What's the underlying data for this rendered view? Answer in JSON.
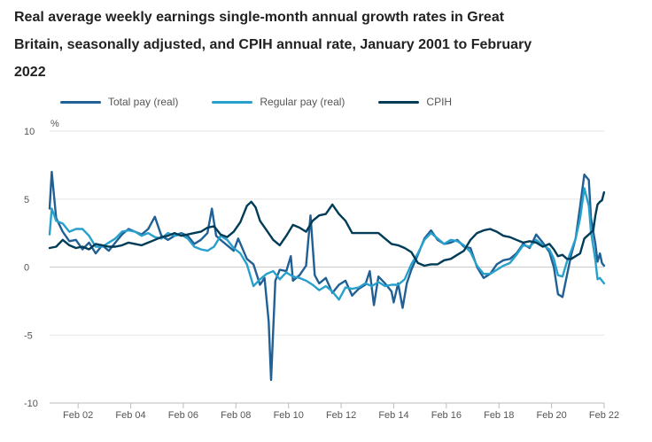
{
  "chart_data": {
    "type": "line",
    "title": "Real average weekly earnings single-month annual growth rates in Great Britain, seasonally adjusted, and CPIH annual rate, January 2001 to February 2022",
    "ylabel": "%",
    "ylim": [
      -10,
      10
    ],
    "yticks": [
      10,
      5,
      0,
      -5,
      -10
    ],
    "xlim": [
      2001.0,
      2022.083
    ],
    "xticks": [
      {
        "label": "Feb 02",
        "x": 2002.083
      },
      {
        "label": "Feb 04",
        "x": 2004.083
      },
      {
        "label": "Feb 06",
        "x": 2006.083
      },
      {
        "label": "Feb 08",
        "x": 2008.083
      },
      {
        "label": "Feb 10",
        "x": 2010.083
      },
      {
        "label": "Feb 12",
        "x": 2012.083
      },
      {
        "label": "Feb 14",
        "x": 2014.083
      },
      {
        "label": "Feb 16",
        "x": 2016.083
      },
      {
        "label": "Feb 18",
        "x": 2018.083
      },
      {
        "label": "Feb 20",
        "x": 2020.083
      },
      {
        "label": "Feb 22",
        "x": 2022.083
      }
    ],
    "grid": true,
    "legend_position": "top-left",
    "series": [
      {
        "name": "Total pay (real)",
        "color": "#206095",
        "points": [
          [
            2001.0,
            4.3
          ],
          [
            2001.08,
            7.0
          ],
          [
            2001.25,
            3.6
          ],
          [
            2001.5,
            2.6
          ],
          [
            2001.75,
            1.9
          ],
          [
            2002.0,
            2.0
          ],
          [
            2002.25,
            1.3
          ],
          [
            2002.5,
            1.8
          ],
          [
            2002.75,
            1.0
          ],
          [
            2003.0,
            1.6
          ],
          [
            2003.25,
            1.2
          ],
          [
            2003.5,
            1.8
          ],
          [
            2003.75,
            2.4
          ],
          [
            2004.0,
            2.8
          ],
          [
            2004.25,
            2.6
          ],
          [
            2004.5,
            2.4
          ],
          [
            2004.75,
            2.8
          ],
          [
            2005.0,
            3.7
          ],
          [
            2005.25,
            2.3
          ],
          [
            2005.5,
            2.0
          ],
          [
            2005.75,
            2.3
          ],
          [
            2006.0,
            2.5
          ],
          [
            2006.25,
            2.3
          ],
          [
            2006.5,
            1.7
          ],
          [
            2006.75,
            2.0
          ],
          [
            2007.0,
            2.5
          ],
          [
            2007.17,
            4.3
          ],
          [
            2007.33,
            2.3
          ],
          [
            2007.5,
            2.0
          ],
          [
            2007.75,
            1.6
          ],
          [
            2008.0,
            1.2
          ],
          [
            2008.17,
            2.1
          ],
          [
            2008.5,
            0.6
          ],
          [
            2008.75,
            0.2
          ],
          [
            2009.0,
            -1.3
          ],
          [
            2009.17,
            -0.8
          ],
          [
            2009.33,
            -4.0
          ],
          [
            2009.42,
            -8.3
          ],
          [
            2009.58,
            -1.0
          ],
          [
            2009.75,
            -0.2
          ],
          [
            2010.0,
            -0.3
          ],
          [
            2010.17,
            0.8
          ],
          [
            2010.25,
            -1.0
          ],
          [
            2010.5,
            -0.6
          ],
          [
            2010.75,
            0.1
          ],
          [
            2010.92,
            3.8
          ],
          [
            2011.08,
            -0.6
          ],
          [
            2011.25,
            -1.2
          ],
          [
            2011.5,
            -0.8
          ],
          [
            2011.75,
            -1.9
          ],
          [
            2012.0,
            -1.3
          ],
          [
            2012.25,
            -1.0
          ],
          [
            2012.5,
            -2.1
          ],
          [
            2012.75,
            -1.6
          ],
          [
            2013.0,
            -1.3
          ],
          [
            2013.17,
            -0.3
          ],
          [
            2013.33,
            -2.8
          ],
          [
            2013.5,
            -0.7
          ],
          [
            2013.75,
            -1.2
          ],
          [
            2014.0,
            -1.8
          ],
          [
            2014.08,
            -2.6
          ],
          [
            2014.25,
            -1.2
          ],
          [
            2014.42,
            -3.0
          ],
          [
            2014.58,
            -1.2
          ],
          [
            2014.75,
            -0.2
          ],
          [
            2015.0,
            0.9
          ],
          [
            2015.25,
            2.1
          ],
          [
            2015.5,
            2.7
          ],
          [
            2015.75,
            2.0
          ],
          [
            2016.0,
            1.7
          ],
          [
            2016.25,
            1.8
          ],
          [
            2016.5,
            2.0
          ],
          [
            2016.75,
            1.5
          ],
          [
            2017.0,
            1.4
          ],
          [
            2017.25,
            0.0
          ],
          [
            2017.5,
            -0.8
          ],
          [
            2017.75,
            -0.5
          ],
          [
            2018.0,
            0.2
          ],
          [
            2018.25,
            0.5
          ],
          [
            2018.5,
            0.6
          ],
          [
            2018.75,
            1.0
          ],
          [
            2019.0,
            1.7
          ],
          [
            2019.25,
            1.4
          ],
          [
            2019.5,
            2.4
          ],
          [
            2019.75,
            1.8
          ],
          [
            2020.0,
            1.1
          ],
          [
            2020.17,
            0.0
          ],
          [
            2020.33,
            -2.0
          ],
          [
            2020.5,
            -2.2
          ],
          [
            2020.67,
            -0.6
          ],
          [
            2020.83,
            0.9
          ],
          [
            2021.0,
            2.1
          ],
          [
            2021.17,
            4.5
          ],
          [
            2021.33,
            6.8
          ],
          [
            2021.5,
            6.4
          ],
          [
            2021.58,
            3.6
          ],
          [
            2021.75,
            1.7
          ],
          [
            2021.83,
            0.4
          ],
          [
            2021.92,
            1.0
          ],
          [
            2022.0,
            0.3
          ],
          [
            2022.08,
            0.1
          ]
        ]
      },
      {
        "name": "Regular pay (real)",
        "color": "#27a0cc",
        "points": [
          [
            2001.0,
            2.4
          ],
          [
            2001.08,
            4.3
          ],
          [
            2001.25,
            3.4
          ],
          [
            2001.5,
            3.2
          ],
          [
            2001.75,
            2.6
          ],
          [
            2002.0,
            2.8
          ],
          [
            2002.25,
            2.8
          ],
          [
            2002.5,
            2.3
          ],
          [
            2002.75,
            1.5
          ],
          [
            2003.0,
            1.5
          ],
          [
            2003.25,
            1.8
          ],
          [
            2003.5,
            2.1
          ],
          [
            2003.75,
            2.6
          ],
          [
            2004.0,
            2.7
          ],
          [
            2004.25,
            2.6
          ],
          [
            2004.5,
            2.3
          ],
          [
            2004.75,
            2.5
          ],
          [
            2005.0,
            2.2
          ],
          [
            2005.25,
            2.1
          ],
          [
            2005.5,
            2.5
          ],
          [
            2005.75,
            2.3
          ],
          [
            2006.0,
            2.4
          ],
          [
            2006.25,
            2.1
          ],
          [
            2006.5,
            1.5
          ],
          [
            2006.75,
            1.3
          ],
          [
            2007.0,
            1.2
          ],
          [
            2007.25,
            1.5
          ],
          [
            2007.5,
            2.3
          ],
          [
            2007.75,
            2.0
          ],
          [
            2008.0,
            1.4
          ],
          [
            2008.25,
            1.0
          ],
          [
            2008.5,
            0.2
          ],
          [
            2008.75,
            -1.4
          ],
          [
            2009.0,
            -0.9
          ],
          [
            2009.25,
            -0.5
          ],
          [
            2009.5,
            -0.3
          ],
          [
            2009.75,
            -0.9
          ],
          [
            2010.0,
            -0.4
          ],
          [
            2010.25,
            -0.7
          ],
          [
            2010.5,
            -0.8
          ],
          [
            2010.75,
            -1.0
          ],
          [
            2011.0,
            -1.3
          ],
          [
            2011.25,
            -1.7
          ],
          [
            2011.5,
            -1.4
          ],
          [
            2011.75,
            -1.8
          ],
          [
            2012.0,
            -2.4
          ],
          [
            2012.25,
            -1.5
          ],
          [
            2012.5,
            -1.6
          ],
          [
            2012.75,
            -1.5
          ],
          [
            2013.0,
            -1.2
          ],
          [
            2013.25,
            -1.4
          ],
          [
            2013.5,
            -1.1
          ],
          [
            2013.75,
            -1.4
          ],
          [
            2014.0,
            -1.3
          ],
          [
            2014.25,
            -1.3
          ],
          [
            2014.5,
            -0.9
          ],
          [
            2014.75,
            0.2
          ],
          [
            2015.0,
            1.0
          ],
          [
            2015.25,
            2.0
          ],
          [
            2015.5,
            2.5
          ],
          [
            2015.75,
            2.1
          ],
          [
            2016.0,
            1.7
          ],
          [
            2016.25,
            2.0
          ],
          [
            2016.5,
            1.9
          ],
          [
            2016.75,
            1.6
          ],
          [
            2017.0,
            1.1
          ],
          [
            2017.25,
            0.1
          ],
          [
            2017.5,
            -0.5
          ],
          [
            2017.75,
            -0.5
          ],
          [
            2018.0,
            -0.2
          ],
          [
            2018.25,
            0.1
          ],
          [
            2018.5,
            0.3
          ],
          [
            2018.75,
            0.9
          ],
          [
            2019.0,
            1.6
          ],
          [
            2019.25,
            1.5
          ],
          [
            2019.5,
            2.0
          ],
          [
            2019.75,
            1.6
          ],
          [
            2020.0,
            1.3
          ],
          [
            2020.17,
            0.6
          ],
          [
            2020.33,
            -0.6
          ],
          [
            2020.5,
            -0.7
          ],
          [
            2020.67,
            0.4
          ],
          [
            2020.83,
            1.2
          ],
          [
            2021.0,
            2.1
          ],
          [
            2021.17,
            3.6
          ],
          [
            2021.33,
            5.8
          ],
          [
            2021.5,
            4.5
          ],
          [
            2021.58,
            2.6
          ],
          [
            2021.75,
            0.5
          ],
          [
            2021.83,
            -0.9
          ],
          [
            2021.92,
            -0.8
          ],
          [
            2022.0,
            -1.0
          ],
          [
            2022.08,
            -1.2
          ]
        ]
      },
      {
        "name": "CPIH",
        "color": "#003c57",
        "points": [
          [
            2001.0,
            1.4
          ],
          [
            2001.25,
            1.5
          ],
          [
            2001.5,
            2.0
          ],
          [
            2001.75,
            1.6
          ],
          [
            2002.0,
            1.4
          ],
          [
            2002.25,
            1.5
          ],
          [
            2002.5,
            1.3
          ],
          [
            2002.75,
            1.7
          ],
          [
            2003.0,
            1.6
          ],
          [
            2003.25,
            1.5
          ],
          [
            2003.5,
            1.5
          ],
          [
            2003.75,
            1.6
          ],
          [
            2004.0,
            1.8
          ],
          [
            2004.25,
            1.7
          ],
          [
            2004.5,
            1.6
          ],
          [
            2004.75,
            1.8
          ],
          [
            2005.0,
            2.0
          ],
          [
            2005.25,
            2.2
          ],
          [
            2005.5,
            2.3
          ],
          [
            2005.75,
            2.5
          ],
          [
            2006.0,
            2.3
          ],
          [
            2006.25,
            2.4
          ],
          [
            2006.5,
            2.5
          ],
          [
            2006.75,
            2.6
          ],
          [
            2007.0,
            2.9
          ],
          [
            2007.25,
            3.0
          ],
          [
            2007.5,
            2.4
          ],
          [
            2007.75,
            2.2
          ],
          [
            2008.0,
            2.6
          ],
          [
            2008.25,
            3.3
          ],
          [
            2008.5,
            4.5
          ],
          [
            2008.67,
            4.8
          ],
          [
            2008.83,
            4.4
          ],
          [
            2009.0,
            3.4
          ],
          [
            2009.25,
            2.7
          ],
          [
            2009.5,
            2.0
          ],
          [
            2009.75,
            1.6
          ],
          [
            2010.0,
            2.3
          ],
          [
            2010.25,
            3.1
          ],
          [
            2010.5,
            2.9
          ],
          [
            2010.75,
            2.6
          ],
          [
            2011.0,
            3.4
          ],
          [
            2011.25,
            3.8
          ],
          [
            2011.5,
            3.9
          ],
          [
            2011.75,
            4.6
          ],
          [
            2012.0,
            3.9
          ],
          [
            2012.25,
            3.4
          ],
          [
            2012.5,
            2.5
          ],
          [
            2012.75,
            2.5
          ],
          [
            2013.0,
            2.5
          ],
          [
            2013.25,
            2.5
          ],
          [
            2013.5,
            2.5
          ],
          [
            2013.75,
            2.1
          ],
          [
            2014.0,
            1.7
          ],
          [
            2014.25,
            1.6
          ],
          [
            2014.5,
            1.4
          ],
          [
            2014.75,
            1.1
          ],
          [
            2015.0,
            0.3
          ],
          [
            2015.25,
            0.1
          ],
          [
            2015.5,
            0.2
          ],
          [
            2015.75,
            0.2
          ],
          [
            2016.0,
            0.5
          ],
          [
            2016.25,
            0.6
          ],
          [
            2016.5,
            0.9
          ],
          [
            2016.75,
            1.2
          ],
          [
            2017.0,
            2.0
          ],
          [
            2017.25,
            2.5
          ],
          [
            2017.5,
            2.7
          ],
          [
            2017.75,
            2.8
          ],
          [
            2018.0,
            2.6
          ],
          [
            2018.25,
            2.3
          ],
          [
            2018.5,
            2.2
          ],
          [
            2018.75,
            2.0
          ],
          [
            2019.0,
            1.8
          ],
          [
            2019.25,
            1.9
          ],
          [
            2019.5,
            1.8
          ],
          [
            2019.75,
            1.5
          ],
          [
            2020.0,
            1.7
          ],
          [
            2020.17,
            1.3
          ],
          [
            2020.33,
            0.8
          ],
          [
            2020.5,
            0.9
          ],
          [
            2020.67,
            0.6
          ],
          [
            2020.83,
            0.6
          ],
          [
            2021.0,
            0.8
          ],
          [
            2021.17,
            1.0
          ],
          [
            2021.33,
            2.1
          ],
          [
            2021.5,
            2.4
          ],
          [
            2021.67,
            2.7
          ],
          [
            2021.75,
            3.8
          ],
          [
            2021.83,
            4.6
          ],
          [
            2021.92,
            4.8
          ],
          [
            2022.0,
            4.9
          ],
          [
            2022.08,
            5.5
          ]
        ]
      }
    ]
  }
}
